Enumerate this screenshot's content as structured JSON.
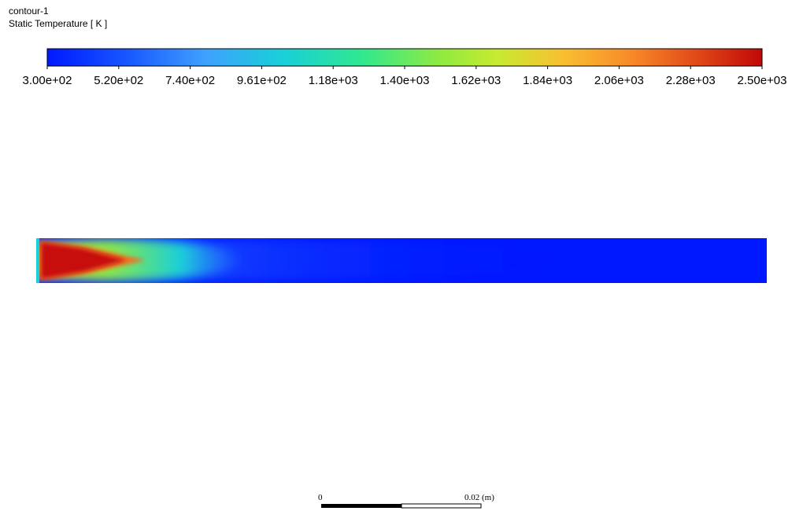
{
  "legend": {
    "title": "contour-1",
    "subtitle": "Static Temperature [ K ]",
    "ticks": [
      "3.00e+02",
      "5.20e+02",
      "7.40e+02",
      "9.61e+02",
      "1.18e+03",
      "1.40e+03",
      "1.62e+03",
      "1.84e+03",
      "2.06e+03",
      "2.28e+03",
      "2.50e+03"
    ]
  },
  "scale_bar": {
    "start": "0",
    "end": "0.02 (m)"
  }
}
